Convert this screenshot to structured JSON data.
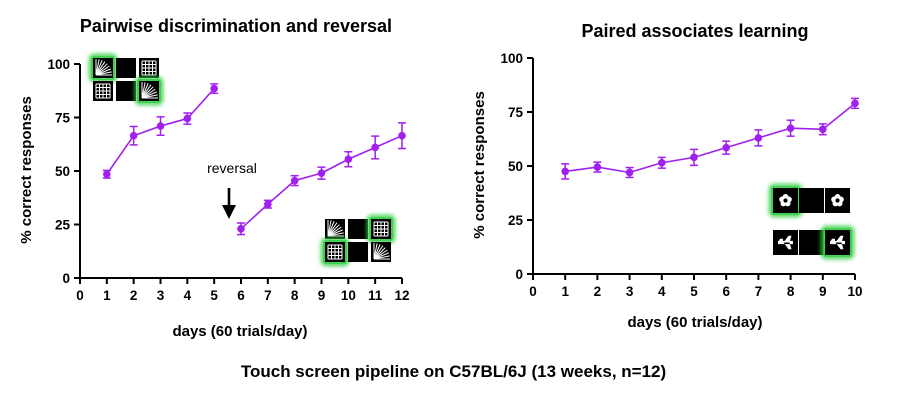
{
  "caption": "Touch screen pipeline on C57BL/6J (13 weeks, n=12)",
  "colors": {
    "series": "#a020f0",
    "axis": "#000000",
    "highlight": "#2ecc40",
    "stim_bg": "#000000",
    "stim_fg": "#ffffff"
  },
  "chart_data": [
    {
      "type": "line",
      "title": "Pairwise discrimination and reversal",
      "xlabel": "days (60 trials/day)",
      "ylabel": "% correct responses",
      "xlim": [
        0,
        12
      ],
      "ylim": [
        0,
        100
      ],
      "xticks": [
        0,
        1,
        2,
        3,
        4,
        5,
        6,
        7,
        8,
        9,
        10,
        11,
        12
      ],
      "yticks": [
        0,
        25,
        50,
        75,
        100
      ],
      "grid": false,
      "annotation": "reversal",
      "icons": [
        "stimulus-grid-icon-discrimination",
        "stimulus-grid-icon-reversal"
      ],
      "series": [
        {
          "segments": [
            {
              "x": [
                1,
                2,
                3,
                4,
                5
              ],
              "y": [
                48.5,
                66.5,
                71,
                74.5,
                88.5
              ],
              "err": [
                1.8,
                4.3,
                4.3,
                2.6,
                2.2
              ]
            },
            {
              "x": [
                6,
                7,
                8,
                9,
                10,
                11,
                12
              ],
              "y": [
                23,
                34.5,
                45.5,
                49,
                55.5,
                61,
                66.5
              ],
              "err": [
                2.7,
                1.8,
                2.3,
                2.8,
                3.5,
                5.3,
                6
              ]
            }
          ]
        }
      ]
    },
    {
      "type": "line",
      "title": "Paired associates learning",
      "xlabel": "days (60 trials/day)",
      "ylabel": "% correct responses",
      "xlim": [
        0,
        10
      ],
      "ylim": [
        0,
        100
      ],
      "xticks": [
        0,
        1,
        2,
        3,
        4,
        5,
        6,
        7,
        8,
        9,
        10
      ],
      "yticks": [
        0,
        25,
        50,
        75,
        100
      ],
      "grid": false,
      "icons": [
        "flower-plane-grid-icon"
      ],
      "series": [
        {
          "segments": [
            {
              "x": [
                1,
                2,
                3,
                4,
                5,
                6,
                7,
                8,
                9,
                10
              ],
              "y": [
                47.5,
                49.5,
                47,
                51.5,
                54,
                58.5,
                63,
                67.5,
                67,
                79
              ],
              "err": [
                3.5,
                2.3,
                2.3,
                2.5,
                3.7,
                3,
                3.7,
                3.7,
                2.5,
                2.3
              ]
            }
          ]
        }
      ]
    }
  ]
}
